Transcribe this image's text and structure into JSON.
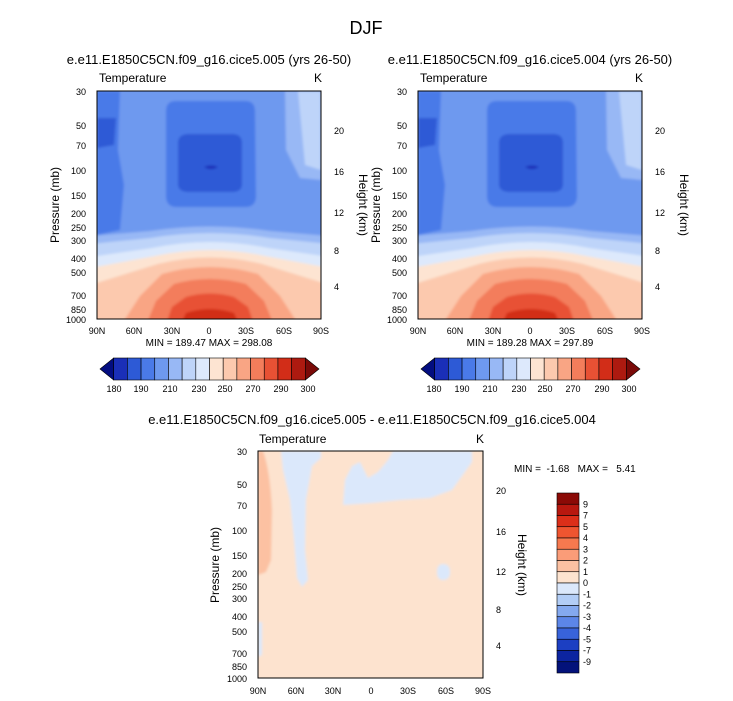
{
  "page_title": "DJF",
  "panels": [
    {
      "title": "e.e11.E1850C5CN.f09_g16.cice5.005 (yrs 26-50)",
      "field_label": "Temperature",
      "units": "K",
      "stats": "MIN = 189.47   MAX = 298.08"
    },
    {
      "title": "e.e11.E1850C5CN.f09_g16.cice5.004 (yrs 26-50)",
      "field_label": "Temperature",
      "units": "K",
      "stats": "MIN = 189.28   MAX = 297.89"
    },
    {
      "title": "e.e11.E1850C5CN.f09_g16.cice5.005 - e.e11.E1850C5CN.f09_g16.cice5.004",
      "field_label": "Temperature",
      "units": "K",
      "stats": "MIN =  -1.68   MAX =   5.41"
    }
  ],
  "chart_data": [
    {
      "type": "heatmap",
      "subtype": "filled-contour latitude-pressure cross section",
      "title": "e.e11.E1850C5CN.f09_g16.cice5.005 (yrs 26-50)",
      "ylabel": "Pressure (mb)",
      "y2label": "Height (km)",
      "x_ticks": [
        "90N",
        "60N",
        "30N",
        "0",
        "30S",
        "60S",
        "90S"
      ],
      "y_ticks": [
        "30",
        "50",
        "70",
        "100",
        "150",
        "200",
        "250",
        "300",
        "400",
        "500",
        "700",
        "850",
        "1000"
      ],
      "y2_ticks": [
        "20",
        "16",
        "12",
        "8",
        "4"
      ],
      "y_scale": "log",
      "ylim": [
        1000,
        30
      ],
      "xlim": [
        90,
        -90
      ],
      "min": 189.47,
      "max": 298.08,
      "colorbar_labels": [
        "180",
        "190",
        "210",
        "230",
        "250",
        "270",
        "290",
        "300"
      ],
      "levels": [
        180,
        185,
        190,
        200,
        210,
        220,
        230,
        240,
        250,
        260,
        270,
        280,
        290,
        295,
        300
      ],
      "colors": [
        "#030d80",
        "#1a2fb8",
        "#2d5ad6",
        "#4a7ae8",
        "#6e99ef",
        "#98b8f5",
        "#bed4f9",
        "#dde9fc",
        "#fde4d2",
        "#fcc9ae",
        "#f9a584",
        "#f37d5b",
        "#e85134",
        "#d22d18",
        "#ad1a10",
        "#7a0a08"
      ]
    },
    {
      "type": "heatmap",
      "subtype": "filled-contour latitude-pressure cross section",
      "title": "e.e11.E1850C5CN.f09_g16.cice5.004 (yrs 26-50)",
      "ylabel": "Pressure (mb)",
      "y2label": "Height (km)",
      "x_ticks": [
        "90N",
        "60N",
        "30N",
        "0",
        "30S",
        "60S",
        "90S"
      ],
      "y_ticks": [
        "30",
        "50",
        "70",
        "100",
        "150",
        "200",
        "250",
        "300",
        "400",
        "500",
        "700",
        "850",
        "1000"
      ],
      "y2_ticks": [
        "20",
        "16",
        "12",
        "8",
        "4"
      ],
      "y_scale": "log",
      "ylim": [
        1000,
        30
      ],
      "xlim": [
        90,
        -90
      ],
      "min": 189.28,
      "max": 297.89,
      "colorbar_labels": [
        "180",
        "190",
        "210",
        "230",
        "250",
        "270",
        "290",
        "300"
      ],
      "levels": [
        180,
        185,
        190,
        200,
        210,
        220,
        230,
        240,
        250,
        260,
        270,
        280,
        290,
        295,
        300
      ],
      "colors": [
        "#030d80",
        "#1a2fb8",
        "#2d5ad6",
        "#4a7ae8",
        "#6e99ef",
        "#98b8f5",
        "#bed4f9",
        "#dde9fc",
        "#fde4d2",
        "#fcc9ae",
        "#f9a584",
        "#f37d5b",
        "#e85134",
        "#d22d18",
        "#ad1a10",
        "#7a0a08"
      ]
    },
    {
      "type": "heatmap",
      "subtype": "filled-contour latitude-pressure difference",
      "title": "e.e11.E1850C5CN.f09_g16.cice5.005 - e.e11.E1850C5CN.f09_g16.cice5.004",
      "ylabel": "Pressure (mb)",
      "y2label": "Height (km)",
      "x_ticks": [
        "90N",
        "60N",
        "30N",
        "0",
        "30S",
        "60S",
        "90S"
      ],
      "y_ticks": [
        "30",
        "50",
        "70",
        "100",
        "150",
        "200",
        "250",
        "300",
        "400",
        "500",
        "700",
        "850",
        "1000"
      ],
      "y2_ticks": [
        "20",
        "16",
        "12",
        "8",
        "4"
      ],
      "y_scale": "log",
      "ylim": [
        1000,
        30
      ],
      "xlim": [
        90,
        -90
      ],
      "min": -1.68,
      "max": 5.41,
      "colorbar_labels": [
        "9",
        "7",
        "5",
        "4",
        "3",
        "2",
        "1",
        "0",
        "-1",
        "-2",
        "-3",
        "-4",
        "-5",
        "-7",
        "-9"
      ],
      "colors_top_to_bottom": [
        "#8b0a06",
        "#b8180f",
        "#dc2f19",
        "#ef5530",
        "#f6794f",
        "#fa9c78",
        "#fcc1a2",
        "#fde3cf",
        "#dbe8fb",
        "#b2cdf6",
        "#84a9ef",
        "#5c86e8",
        "#3863da",
        "#1c3fc2",
        "#0c24a0",
        "#03127a"
      ],
      "regions": {
        "background": "0 to 1",
        "warm_strip_near_90N_upper": "1 to 2",
        "cool_patches_upper": "-1 to 0"
      }
    }
  ]
}
